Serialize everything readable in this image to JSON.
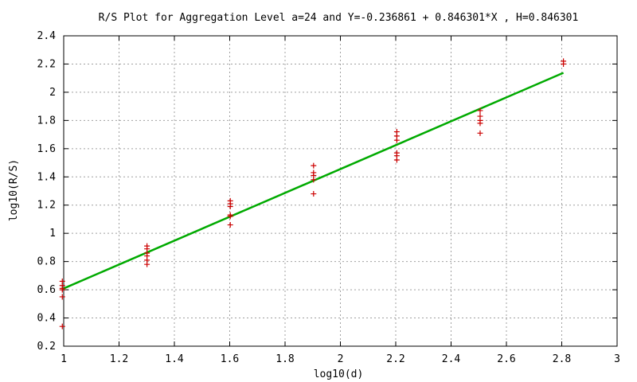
{
  "chart_data": {
    "type": "scatter",
    "title": "R/S Plot for Aggregation Level a=24 and Y=-0.236861 + 0.846301*X , H=0.846301",
    "xlabel": "log10(d)",
    "ylabel": "log10(R/S)",
    "xlim": [
      1,
      3
    ],
    "ylim": [
      0.2,
      2.4
    ],
    "x_ticks": [
      "1",
      "1.2",
      "1.4",
      "1.6",
      "1.8",
      "2",
      "2.2",
      "2.4",
      "2.6",
      "2.8",
      "3"
    ],
    "y_ticks": [
      "0.2",
      "0.4",
      "0.6",
      "0.8",
      "1",
      "1.2",
      "1.4",
      "1.6",
      "1.8",
      "2",
      "2.2",
      "2.4"
    ],
    "grid": true,
    "colors": {
      "points": "#cc0000",
      "fit": "#00aa00",
      "grid": "#a0a0a0"
    },
    "series": [
      {
        "kind": "points",
        "points": [
          [
            0.995,
            0.34
          ],
          [
            0.995,
            0.55
          ],
          [
            0.995,
            0.6
          ],
          [
            0.995,
            0.61
          ],
          [
            0.995,
            0.63
          ],
          [
            0.995,
            0.66
          ],
          [
            1.301,
            0.78
          ],
          [
            1.301,
            0.81
          ],
          [
            1.301,
            0.84
          ],
          [
            1.301,
            0.86
          ],
          [
            1.301,
            0.89
          ],
          [
            1.301,
            0.91
          ],
          [
            1.602,
            1.06
          ],
          [
            1.602,
            1.12
          ],
          [
            1.602,
            1.13
          ],
          [
            1.602,
            1.19
          ],
          [
            1.602,
            1.21
          ],
          [
            1.602,
            1.23
          ],
          [
            1.903,
            1.28
          ],
          [
            1.903,
            1.38
          ],
          [
            1.903,
            1.41
          ],
          [
            1.903,
            1.43
          ],
          [
            1.903,
            1.48
          ],
          [
            2.204,
            1.52
          ],
          [
            2.204,
            1.55
          ],
          [
            2.204,
            1.57
          ],
          [
            2.204,
            1.66
          ],
          [
            2.204,
            1.69
          ],
          [
            2.204,
            1.72
          ],
          [
            2.505,
            1.71
          ],
          [
            2.505,
            1.78
          ],
          [
            2.505,
            1.8
          ],
          [
            2.505,
            1.83
          ],
          [
            2.505,
            1.87
          ],
          [
            2.806,
            2.2
          ],
          [
            2.806,
            2.22
          ]
        ]
      },
      {
        "kind": "fit-line",
        "intercept": -0.236861,
        "slope": 0.846301,
        "x_range": [
          0.995,
          2.806
        ]
      }
    ]
  }
}
